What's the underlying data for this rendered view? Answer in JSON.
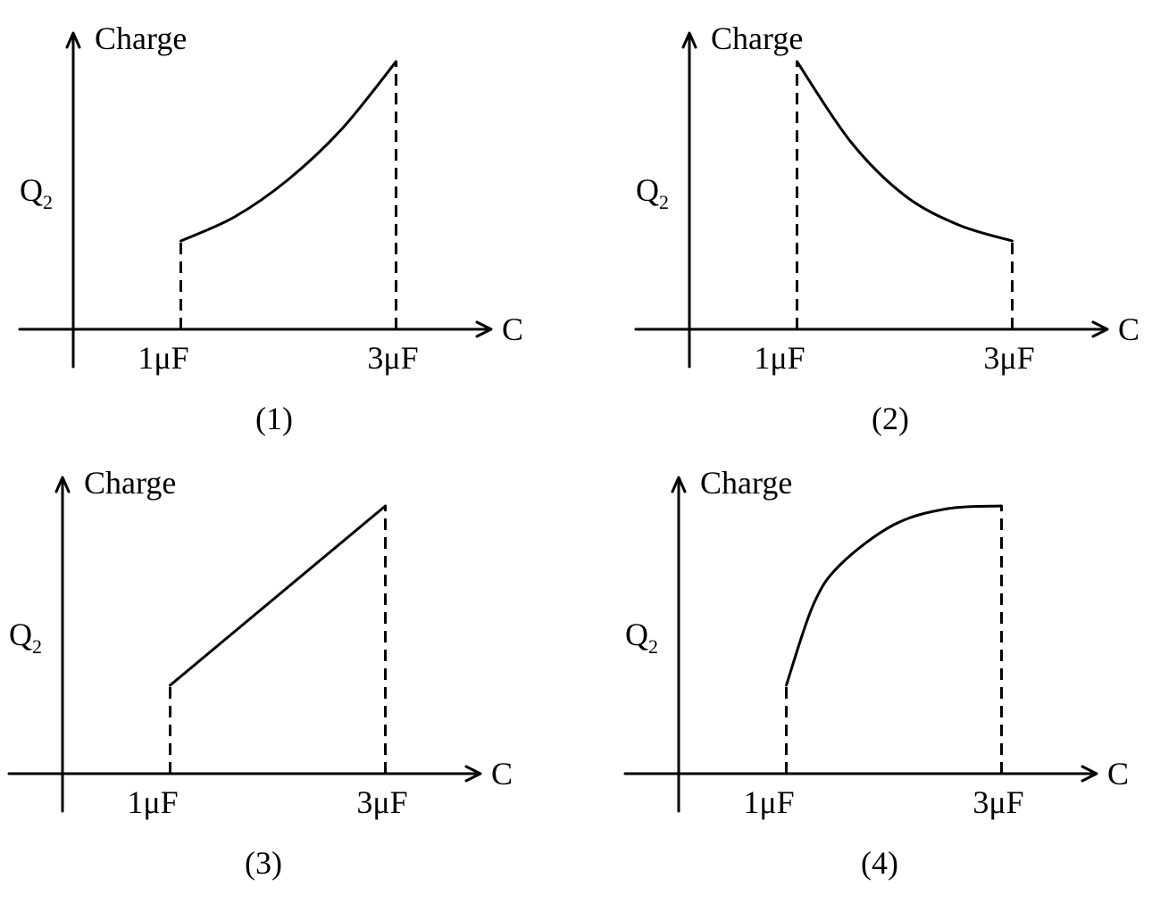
{
  "chart_data": [
    {
      "type": "line",
      "caption": "(1)",
      "ylabel": "Charge",
      "xlabel": "C",
      "y_marker_label": "Q",
      "y_marker_subscript": "2",
      "categories": [
        "1μF",
        "3μF"
      ],
      "x": [
        1,
        3
      ],
      "x_unit": "μF",
      "series": [
        {
          "x": [
            1,
            1.5,
            2,
            2.5,
            3
          ],
          "values": [
            0.33,
            0.42,
            0.56,
            0.75,
            1.0
          ]
        }
      ],
      "xlim": [
        0,
        3.9
      ],
      "ylim": [
        0,
        1.1
      ],
      "grid": false
    },
    {
      "type": "line",
      "caption": "(2)",
      "ylabel": "Charge",
      "xlabel": "C",
      "y_marker_label": "Q",
      "y_marker_subscript": "2",
      "categories": [
        "1μF",
        "3μF"
      ],
      "x": [
        1,
        3
      ],
      "x_unit": "μF",
      "series": [
        {
          "x": [
            1,
            1.5,
            2,
            2.5,
            3
          ],
          "values": [
            1.0,
            0.7,
            0.5,
            0.39,
            0.33
          ]
        }
      ],
      "xlim": [
        0,
        3.9
      ],
      "ylim": [
        0,
        1.1
      ],
      "grid": false
    },
    {
      "type": "line",
      "caption": "(3)",
      "ylabel": "Charge",
      "xlabel": "C",
      "y_marker_label": "Q",
      "y_marker_subscript": "2",
      "categories": [
        "1μF",
        "3μF"
      ],
      "x": [
        1,
        3
      ],
      "x_unit": "μF",
      "series": [
        {
          "x": [
            1,
            3
          ],
          "values": [
            0.33,
            1.0
          ]
        }
      ],
      "xlim": [
        0,
        3.9
      ],
      "ylim": [
        0,
        1.1
      ],
      "grid": false
    },
    {
      "type": "line",
      "caption": "(4)",
      "ylabel": "Charge",
      "xlabel": "C",
      "y_marker_label": "Q",
      "y_marker_subscript": "2",
      "categories": [
        "1μF",
        "3μF"
      ],
      "x": [
        1,
        3
      ],
      "x_unit": "μF",
      "series": [
        {
          "x": [
            1,
            1.25,
            1.5,
            2,
            2.5,
            3
          ],
          "values": [
            0.33,
            0.63,
            0.78,
            0.93,
            0.99,
            1.0
          ]
        }
      ],
      "xlim": [
        0,
        3.9
      ],
      "ylim": [
        0,
        1.1
      ],
      "grid": false
    }
  ]
}
